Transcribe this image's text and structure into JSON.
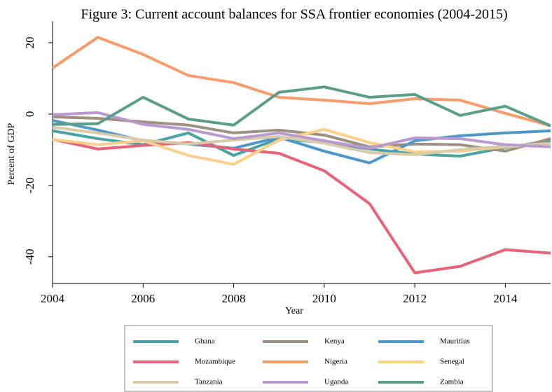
{
  "chart_data": {
    "type": "line",
    "title": "Figure 3: Current account balances for SSA frontier economies (2004-2015)",
    "xlabel": "Year",
    "ylabel": "Percent of GDP",
    "x": [
      2004,
      2005,
      2006,
      2007,
      2008,
      2009,
      2010,
      2011,
      2012,
      2013,
      2014,
      2015
    ],
    "xlim": [
      2004,
      2015
    ],
    "xticks": [
      2004,
      2006,
      2008,
      2010,
      2012,
      2014
    ],
    "ylim": [
      -47.5,
      25
    ],
    "yticks": [
      -40,
      -20,
      0,
      20
    ],
    "series": [
      {
        "name": "Ghana",
        "color": "#4aa3a3",
        "values": [
          -4.7,
          -6.9,
          -8.6,
          -5.3,
          -11.6,
          -6.9,
          -8.0,
          -9.8,
          -11.2,
          -11.8,
          -9.4,
          -7.5
        ]
      },
      {
        "name": "Kenya",
        "color": "#9e9184",
        "values": [
          -0.8,
          -1.2,
          -2.2,
          -3.1,
          -5.3,
          -4.5,
          -5.9,
          -9.2,
          -8.4,
          -8.6,
          -10.4,
          -6.9
        ]
      },
      {
        "name": "Mauritius",
        "color": "#4e97c9",
        "values": [
          -1.8,
          -4.5,
          -7.5,
          -8.4,
          -9.6,
          -6.5,
          -10.4,
          -13.7,
          -7.5,
          -6.1,
          -5.3,
          -4.7
        ]
      },
      {
        "name": "Mozambique",
        "color": "#e8637a",
        "values": [
          -7.1,
          -9.8,
          -8.8,
          -8.0,
          -9.8,
          -11.0,
          -15.9,
          -25.1,
          -44.5,
          -42.7,
          -38.0,
          -39.0
        ]
      },
      {
        "name": "Nigeria",
        "color": "#f79c6b",
        "values": [
          12.9,
          21.5,
          16.7,
          10.8,
          8.8,
          4.7,
          3.9,
          2.9,
          4.3,
          3.9,
          0.2,
          -3.3
        ]
      },
      {
        "name": "Senegal",
        "color": "#fdd08a",
        "values": [
          -7.1,
          -8.6,
          -7.5,
          -11.6,
          -14.1,
          -7.3,
          -4.3,
          -8.0,
          -10.6,
          -10.4,
          -9.2,
          -8.4
        ]
      },
      {
        "name": "Tanzania",
        "color": "#d8cba8",
        "values": [
          -3.7,
          -5.3,
          -7.3,
          -8.4,
          -7.3,
          -6.3,
          -8.2,
          -10.8,
          -11.4,
          -10.0,
          -9.0,
          -8.2
        ]
      },
      {
        "name": "Uganda",
        "color": "#b99ad0",
        "values": [
          -0.2,
          0.4,
          -2.9,
          -4.3,
          -6.9,
          -5.3,
          -7.5,
          -9.6,
          -6.7,
          -6.9,
          -8.6,
          -9.2
        ]
      },
      {
        "name": "Zambia",
        "color": "#5a9e8a",
        "values": [
          -2.9,
          -2.7,
          4.7,
          -1.4,
          -3.1,
          6.1,
          7.6,
          4.7,
          5.5,
          -0.4,
          2.2,
          -3.3
        ]
      }
    ]
  }
}
